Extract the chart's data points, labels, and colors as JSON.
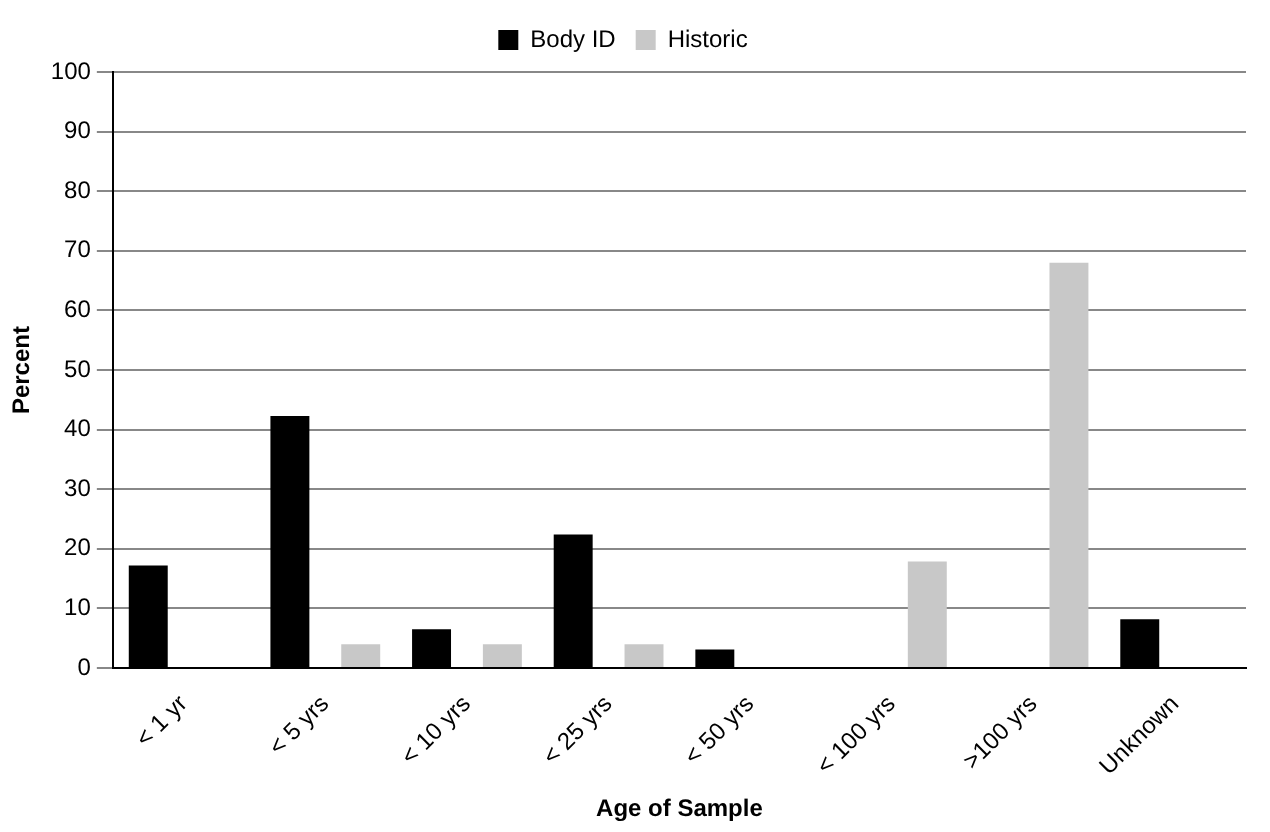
{
  "chart_data": {
    "type": "bar",
    "xlabel": "Age of Sample",
    "ylabel": "Percent",
    "categories": [
      "< 1 yr",
      "< 5 yrs",
      "< 10 yrs",
      "< 25 yrs",
      "< 50 yrs",
      "< 100 yrs",
      ">100 yrs",
      "Unknown"
    ],
    "series": [
      {
        "name": "Body ID",
        "color": "#000000",
        "values": [
          17.2,
          42.3,
          6.5,
          22.4,
          3.1,
          0,
          0,
          8.2
        ]
      },
      {
        "name": "Historic",
        "color": "#c8c8c8",
        "values": [
          0,
          4,
          4,
          4,
          0,
          17.9,
          68,
          0
        ]
      }
    ],
    "ylim": [
      0,
      100
    ],
    "yticks": [
      0,
      10,
      20,
      30,
      40,
      50,
      60,
      70,
      80,
      90,
      100
    ],
    "grid": "y",
    "legend": "top"
  }
}
